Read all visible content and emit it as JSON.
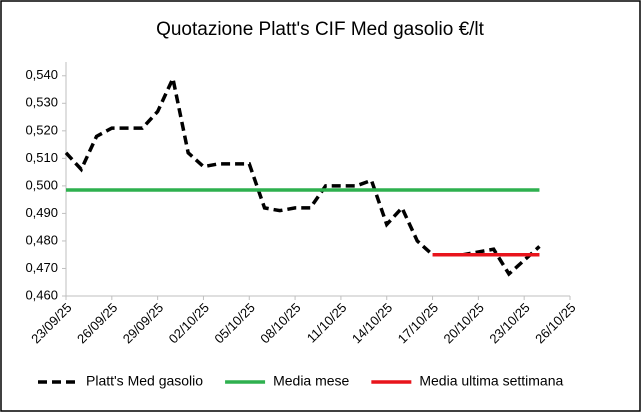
{
  "chart_data": {
    "type": "line",
    "title": "Quotazione Platt's CIF Med gasolio €/lt",
    "series": [
      {
        "name": "Platt's Med gasolio",
        "color": "#000000",
        "dashed": true,
        "x": [
          "23/09/25",
          "24/09/25",
          "25/09/25",
          "26/09/25",
          "27/09/25",
          "28/09/25",
          "29/09/25",
          "30/09/25",
          "01/10/25",
          "02/10/25",
          "03/10/25",
          "04/10/25",
          "05/10/25",
          "06/10/25",
          "07/10/25",
          "08/10/25",
          "09/10/25",
          "10/10/25",
          "11/10/25",
          "12/10/25",
          "13/10/25",
          "14/10/25",
          "15/10/25",
          "16/10/25",
          "17/10/25",
          "18/10/25",
          "19/10/25",
          "20/10/25",
          "21/10/25",
          "22/10/25",
          "23/10/25",
          "24/10/25"
        ],
        "values": [
          0.512,
          0.506,
          0.518,
          0.521,
          0.521,
          0.521,
          0.527,
          0.539,
          0.512,
          0.507,
          0.508,
          0.508,
          0.508,
          0.492,
          0.491,
          0.492,
          0.492,
          0.5,
          0.5,
          0.5,
          0.502,
          0.486,
          0.492,
          0.48,
          0.475,
          0.475,
          0.475,
          0.476,
          0.477,
          0.468,
          0.473,
          0.478
        ]
      },
      {
        "name": "Media mese",
        "color": "#2eb04f",
        "dashed": false,
        "x": [
          "23/09/25",
          "24/10/25"
        ],
        "values": [
          0.4985,
          0.4985
        ]
      },
      {
        "name": "Media ultima settimana",
        "color": "#e8141c",
        "dashed": false,
        "x": [
          "17/10/25",
          "24/10/25"
        ],
        "values": [
          0.475,
          0.475
        ]
      }
    ],
    "xlim": [
      "23/09/25",
      "26/10/25"
    ],
    "xticks": [
      "23/09/25",
      "26/09/25",
      "29/09/25",
      "02/10/25",
      "05/10/25",
      "08/10/25",
      "11/10/25",
      "14/10/25",
      "17/10/25",
      "20/10/25",
      "23/10/25",
      "26/10/25"
    ],
    "ylim": [
      0.46,
      0.545
    ],
    "yticks": [
      {
        "value": 0.46,
        "label": "0,460"
      },
      {
        "value": 0.47,
        "label": "0,470"
      },
      {
        "value": 0.48,
        "label": "0,480"
      },
      {
        "value": 0.49,
        "label": "0,490"
      },
      {
        "value": 0.5,
        "label": "0,500"
      },
      {
        "value": 0.51,
        "label": "0,510"
      },
      {
        "value": 0.52,
        "label": "0,520"
      },
      {
        "value": 0.53,
        "label": "0,530"
      },
      {
        "value": 0.54,
        "label": "0,540"
      }
    ],
    "legend": "bottom"
  }
}
